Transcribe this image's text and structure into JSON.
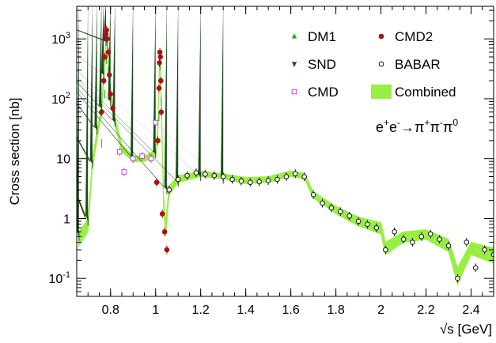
{
  "chart_data": {
    "type": "scatter",
    "title": "",
    "xlabel": "√s   [GeV]",
    "ylabel": "Cross section [nb]",
    "xlim": [
      0.65,
      2.5
    ],
    "ylim": [
      0.05,
      3500
    ],
    "y_scale": "log",
    "grid": false,
    "legend_position": "top-right",
    "annotation": {
      "base": "e+e-→π+π-π0",
      "parts": [
        {
          "t": "e",
          "s": ""
        },
        {
          "t": "+",
          "s": "sup"
        },
        {
          "t": "e",
          "s": ""
        },
        {
          "t": "-",
          "s": "sup"
        },
        {
          "t": "→π",
          "s": ""
        },
        {
          "t": "+",
          "s": "sup"
        },
        {
          "t": "π",
          "s": ""
        },
        {
          "t": "-",
          "s": "sup"
        },
        {
          "t": "π",
          "s": ""
        },
        {
          "t": "0",
          "s": "sup"
        }
      ]
    },
    "x_ticks": [
      0.8,
      1.0,
      1.2,
      1.4,
      1.6,
      1.8,
      2.0,
      2.2,
      2.4
    ],
    "x_tick_labels": [
      "0.8",
      "1",
      "1.2",
      "1.4",
      "1.6",
      "1.8",
      "2",
      "2.2",
      "2.4"
    ],
    "y_ticks": [
      0.1,
      1,
      10,
      100,
      1000
    ],
    "y_tick_labels": [
      {
        "base": "10",
        "exp": "-1"
      },
      {
        "base": "1",
        "exp": ""
      },
      {
        "base": "10",
        "exp": ""
      },
      {
        "base": "10",
        "exp": "2"
      },
      {
        "base": "10",
        "exp": "3"
      }
    ],
    "colors": {
      "dm1": "#22aa22",
      "snd": "#1d4a1d",
      "cmd2": "#aa1111",
      "cmd": "#cc44cc",
      "babar": "#111111",
      "combined": "#99ee44"
    },
    "legend": [
      {
        "label": "DM1",
        "marker": "triangle-up",
        "key": "dm1"
      },
      {
        "label": "CMD2",
        "marker": "circle",
        "key": "cmd2"
      },
      {
        "label": "SND",
        "marker": "triangle-down",
        "key": "snd"
      },
      {
        "label": "BABAR",
        "marker": "open-circle",
        "key": "babar"
      },
      {
        "label": "CMD",
        "marker": "open-square",
        "key": "cmd"
      },
      {
        "label": "Combined",
        "marker": "band",
        "key": "combined"
      }
    ],
    "series": [
      {
        "name": "DM1",
        "key": "dm1",
        "marker": "triangle-up",
        "x": [
          0.76,
          0.775,
          0.782,
          0.786,
          0.79,
          0.8,
          1.015,
          1.02,
          1.025
        ],
        "y": [
          18,
          120,
          450,
          800,
          300,
          150,
          50,
          350,
          90
        ]
      },
      {
        "name": "SND",
        "key": "snd",
        "marker": "triangle-down",
        "x": [
          0.66,
          0.7,
          0.72,
          0.74,
          0.76,
          0.77,
          0.78,
          0.8,
          0.82,
          0.9,
          1.0,
          1.05,
          1.1,
          1.2,
          1.3
        ],
        "y": [
          0.5,
          0.9,
          8,
          30,
          70,
          250,
          900,
          90,
          40,
          10,
          12,
          3,
          4,
          5,
          4.5
        ]
      },
      {
        "name": "CMD2",
        "key": "cmd2",
        "marker": "circle",
        "x": [
          0.76,
          0.77,
          0.775,
          0.78,
          0.782,
          0.785,
          0.79,
          0.795,
          0.8,
          0.81,
          1.005,
          1.01,
          1.015,
          1.017,
          1.019,
          1.021,
          1.023,
          1.025,
          1.03,
          1.04,
          1.05
        ],
        "y": [
          60,
          200,
          500,
          1200,
          1400,
          1000,
          600,
          250,
          120,
          70,
          4,
          20,
          150,
          400,
          600,
          500,
          200,
          60,
          1.2,
          0.6,
          0.3
        ]
      },
      {
        "name": "CMD",
        "key": "cmd",
        "marker": "open-square",
        "x": [
          0.84,
          0.86,
          0.9,
          0.94,
          0.98,
          1.0
        ],
        "y": [
          13,
          6,
          10,
          11,
          10,
          40
        ]
      },
      {
        "name": "BABAR",
        "key": "babar",
        "marker": "open-circle",
        "x": [
          1.06,
          1.1,
          1.14,
          1.18,
          1.22,
          1.26,
          1.3,
          1.34,
          1.38,
          1.42,
          1.46,
          1.5,
          1.54,
          1.58,
          1.62,
          1.66,
          1.7,
          1.74,
          1.78,
          1.82,
          1.86,
          1.9,
          1.94,
          1.98,
          2.02,
          2.06,
          2.1,
          2.14,
          2.18,
          2.22,
          2.26,
          2.3,
          2.34,
          2.38,
          2.42,
          2.46,
          2.5
        ],
        "y": [
          3,
          4.5,
          5.2,
          5.8,
          5.5,
          5.2,
          5.0,
          4.5,
          4.2,
          4.0,
          4.1,
          4.3,
          4.5,
          5.0,
          5.6,
          5.0,
          2.5,
          1.8,
          1.5,
          1.3,
          1.1,
          0.9,
          0.8,
          0.7,
          0.3,
          0.6,
          0.45,
          0.4,
          0.5,
          0.55,
          0.45,
          0.35,
          0.1,
          0.4,
          0.15,
          0.3,
          0.25
        ]
      }
    ],
    "combined_band": {
      "name": "Combined",
      "x": [
        0.66,
        0.7,
        0.72,
        0.74,
        0.76,
        0.77,
        0.78,
        0.785,
        0.79,
        0.8,
        0.82,
        0.85,
        0.9,
        0.95,
        1.0,
        1.01,
        1.015,
        1.019,
        1.025,
        1.035,
        1.045,
        1.06,
        1.1,
        1.2,
        1.3,
        1.4,
        1.5,
        1.6,
        1.66,
        1.7,
        1.8,
        1.9,
        2.0,
        2.02,
        2.1,
        2.2,
        2.3,
        2.34,
        2.4,
        2.5
      ],
      "lo": [
        0.35,
        0.6,
        7,
        20,
        55,
        200,
        750,
        900,
        400,
        100,
        35,
        13,
        9,
        9,
        11,
        25,
        180,
        450,
        80,
        1.5,
        0.5,
        2.5,
        4.0,
        5.0,
        4.6,
        3.8,
        4.0,
        5.0,
        4.6,
        2.2,
        1.2,
        0.75,
        0.55,
        0.25,
        0.4,
        0.45,
        0.28,
        0.08,
        0.25,
        0.18
      ],
      "hi": [
        0.6,
        1.0,
        10,
        30,
        75,
        270,
        1000,
        1200,
        550,
        140,
        50,
        17,
        11,
        11,
        14,
        35,
        250,
        650,
        120,
        2.5,
        0.9,
        3.5,
        5.2,
        6.2,
        5.6,
        4.8,
        5.0,
        6.2,
        5.7,
        2.8,
        1.6,
        1.05,
        0.85,
        0.4,
        0.6,
        0.65,
        0.45,
        0.15,
        0.4,
        0.32
      ]
    }
  }
}
